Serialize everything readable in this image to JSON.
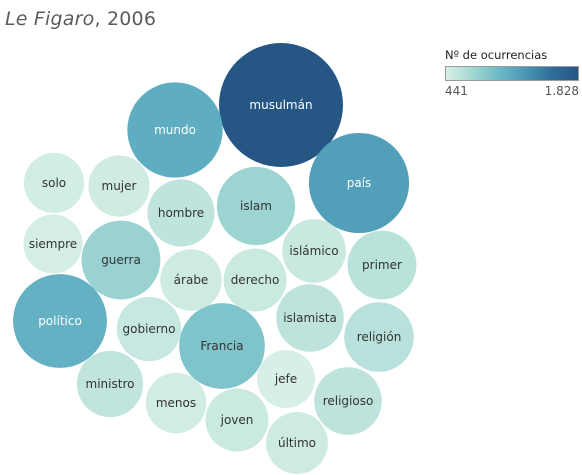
{
  "title": {
    "source": "Le Figaro",
    "year": ", 2006"
  },
  "legend": {
    "title": "Nº de ocurrencias",
    "min_label": "441",
    "max_label": "1.828"
  },
  "chart_data": {
    "type": "bubble",
    "size_encoding": "Nº de ocurrencias",
    "color_encoding": "Nº de ocurrencias",
    "range": [
      441,
      1828
    ],
    "items": [
      {
        "word": "musulmán",
        "value": 1828
      },
      {
        "word": "país",
        "value": 1210
      },
      {
        "word": "mundo",
        "value": 1100
      },
      {
        "word": "político",
        "value": 1070
      },
      {
        "word": "Francia",
        "value": 900
      },
      {
        "word": "guerra",
        "value": 770
      },
      {
        "word": "islam",
        "value": 760
      },
      {
        "word": "religioso",
        "value": 580
      },
      {
        "word": "religión",
        "value": 610
      },
      {
        "word": "primer",
        "value": 600
      },
      {
        "word": "islamista",
        "value": 580
      },
      {
        "word": "islámico",
        "value": 520
      },
      {
        "word": "hombre",
        "value": 570
      },
      {
        "word": "ministro",
        "value": 560
      },
      {
        "word": "gobierno",
        "value": 530
      },
      {
        "word": "derecho",
        "value": 510
      },
      {
        "word": "árabe",
        "value": 490
      },
      {
        "word": "joven",
        "value": 510
      },
      {
        "word": "último",
        "value": 495
      },
      {
        "word": "mujer",
        "value": 485
      },
      {
        "word": "menos",
        "value": 475
      },
      {
        "word": "solo",
        "value": 470
      },
      {
        "word": "siempre",
        "value": 455
      },
      {
        "word": "jefe",
        "value": 441
      }
    ]
  }
}
